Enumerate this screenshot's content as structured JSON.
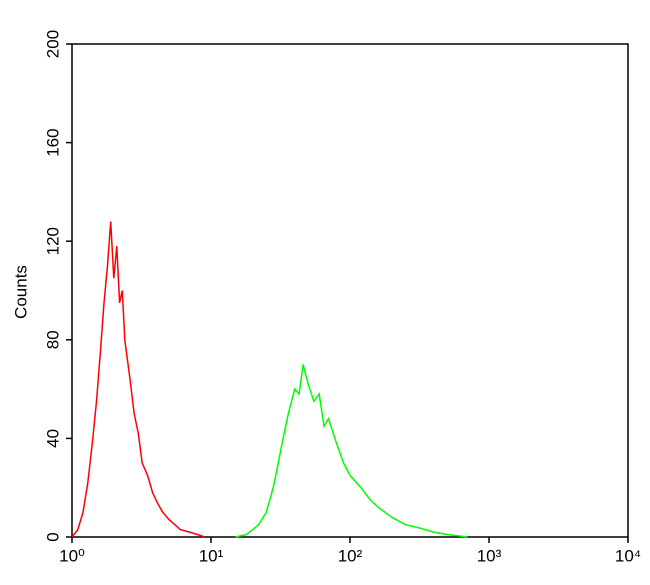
{
  "chart_data": {
    "type": "line",
    "y_label": "Counts",
    "xscale": "log",
    "xlim": [
      1,
      10000
    ],
    "xticks": [
      {
        "value": 1,
        "label": "10⁰"
      },
      {
        "value": 10,
        "label": "10¹"
      },
      {
        "value": 100,
        "label": "10²"
      },
      {
        "value": 1000,
        "label": "10³"
      },
      {
        "value": 10000,
        "label": "10⁴"
      }
    ],
    "ylim": [
      0,
      200
    ],
    "yticks": [
      0,
      40,
      80,
      120,
      160,
      200
    ],
    "series": [
      {
        "color": "#ff0000",
        "x": [
          1.0,
          1.1,
          1.2,
          1.3,
          1.4,
          1.5,
          1.6,
          1.7,
          1.8,
          1.9,
          2.0,
          2.1,
          2.2,
          2.3,
          2.4,
          2.6,
          2.8,
          3.0,
          3.2,
          3.5,
          3.8,
          4.1,
          4.5,
          5.0,
          5.5,
          6.0,
          7.0,
          8.0,
          9.0
        ],
        "values": [
          0,
          3,
          10,
          22,
          38,
          55,
          75,
          95,
          110,
          128,
          105,
          118,
          95,
          100,
          80,
          65,
          50,
          42,
          30,
          25,
          18,
          14,
          10,
          7,
          5,
          3,
          2,
          1,
          0
        ]
      },
      {
        "color": "#00ff00",
        "x": [
          15,
          18,
          20,
          22,
          25,
          28,
          30,
          33,
          36,
          40,
          43,
          46,
          50,
          55,
          60,
          65,
          70,
          80,
          90,
          100,
          120,
          140,
          160,
          200,
          250,
          300,
          400,
          500,
          700
        ],
        "values": [
          0,
          1,
          3,
          5,
          10,
          20,
          28,
          40,
          50,
          60,
          58,
          70,
          62,
          55,
          58,
          45,
          48,
          38,
          30,
          25,
          20,
          15,
          12,
          8,
          5,
          4,
          2,
          1,
          0
        ]
      }
    ]
  }
}
